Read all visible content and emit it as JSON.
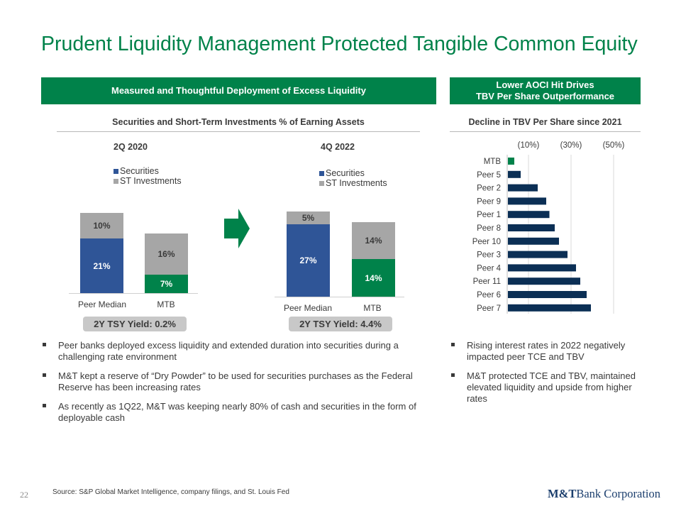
{
  "title": "Prudent Liquidity Management Protected Tangible Common Equity",
  "left_header": "Measured and Thoughtful Deployment of Excess Liquidity",
  "right_header_line1": "Lower AOCI Hit Drives",
  "right_header_line2": "TBV Per Share Outperformance",
  "left_subhead": "Securities and Short-Term Investments % of Earning Assets",
  "right_subhead": "Decline in TBV Per Share since 2021",
  "colors": {
    "green": "#00824a",
    "blue": "#2f5597",
    "gray": "#a6a6a6",
    "navy": "#0b2f55"
  },
  "chart_data": [
    {
      "type": "bar",
      "title": "2Q 2020",
      "stacked": true,
      "categories": [
        "Peer Median",
        "MTB"
      ],
      "legend": [
        "Securities",
        "ST Investments"
      ],
      "series": [
        {
          "name": "Securities",
          "values": [
            21,
            7
          ],
          "labels": [
            "21%",
            "7%"
          ]
        },
        {
          "name": "ST Investments",
          "values": [
            10,
            16
          ],
          "labels": [
            "10%",
            "16%"
          ]
        }
      ],
      "ylim": [
        0,
        35
      ],
      "footnote": "2Y TSY Yield: 0.2%"
    },
    {
      "type": "bar",
      "title": "4Q 2022",
      "stacked": true,
      "categories": [
        "Peer Median",
        "MTB"
      ],
      "legend": [
        "Securities",
        "ST Investments"
      ],
      "series": [
        {
          "name": "Securities",
          "values": [
            27,
            14
          ],
          "labels": [
            "27%",
            "14%"
          ]
        },
        {
          "name": "ST Investments",
          "values": [
            5,
            14
          ],
          "labels": [
            "5%",
            "14%"
          ]
        }
      ],
      "ylim": [
        0,
        35
      ],
      "footnote": "2Y TSY Yield: 4.4%"
    },
    {
      "type": "bar",
      "orientation": "horizontal",
      "title": "Decline in TBV Per Share since 2021",
      "categories": [
        "MTB",
        "Peer 5",
        "Peer 2",
        "Peer 9",
        "Peer 1",
        "Peer 8",
        "Peer 10",
        "Peer 3",
        "Peer 4",
        "Peer 11",
        "Peer 6",
        "Peer 7"
      ],
      "values": [
        -3,
        -6,
        -14,
        -18,
        -19.5,
        -22,
        -24,
        -28,
        -32,
        -34,
        -37,
        -39
      ],
      "tick_labels": [
        "(10%)",
        "(30%)",
        "(50%)"
      ],
      "tick_values": [
        -10,
        -30,
        -50
      ],
      "xlim": [
        0,
        -50
      ]
    }
  ],
  "left_bullets": [
    "Peer banks deployed excess liquidity and extended duration into securities during a challenging rate environment",
    "M&T kept a reserve of “Dry Powder” to be used for securities purchases as the Federal Reserve has been increasing rates",
    "As recently as 1Q22, M&T was keeping nearly 80% of cash and securities in the form of deployable cash"
  ],
  "right_bullets": [
    "Rising interest rates in 2022 negatively impacted peer TCE and TBV",
    "M&T protected TCE and TBV, maintained elevated liquidity and upside from higher rates"
  ],
  "footer": {
    "page_number": "22",
    "source": "Source: S&P Global Market Intelligence, company filings, and St. Louis Fed",
    "logo_bold": "M&T",
    "logo_rest": "Bank Corporation"
  }
}
